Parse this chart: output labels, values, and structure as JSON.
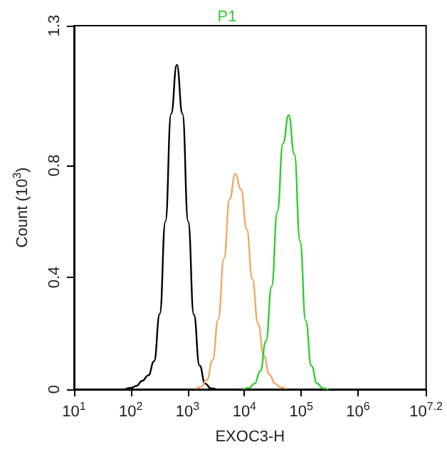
{
  "chart_data": {
    "type": "line",
    "xlabel": "EXOC3-H",
    "ylabel": "Count (10$^{3}$)",
    "log": "x",
    "xlim": [
      10,
      15848932
    ],
    "xticks": [
      {
        "value": 10,
        "label": "10$^{1}$"
      },
      {
        "value": 100,
        "label": "10$^{2}$"
      },
      {
        "value": 1000,
        "label": "10$^{3}$"
      },
      {
        "value": 10000,
        "label": "10$^{4}$"
      },
      {
        "value": 100000,
        "label": "10$^{5}$"
      },
      {
        "value": 1000000,
        "label": "10$^{6}$"
      },
      {
        "value": 15848932,
        "label": "10$^{7.2}$"
      }
    ],
    "ylim": [
      0,
      1.3
    ],
    "yticks": [
      0,
      0.4,
      0.8,
      1.3
    ],
    "grid": false,
    "marker": "none",
    "line_style": "solid",
    "legend": "top",
    "series": [
      {
        "color": "#000000",
        "x": [
          79,
          100,
          126,
          158,
          204,
          257,
          324,
          407,
          513,
          646,
          813,
          1023,
          1288,
          1622,
          2042,
          2570,
          3162
        ],
        "values": [
          0,
          0.005,
          0.012,
          0.03,
          0.05,
          0.1,
          0.27,
          0.6,
          0.985,
          1.16,
          0.985,
          0.6,
          0.267,
          0.085,
          0.02,
          0.003,
          0
        ]
      },
      {
        "color": "#f0a868",
        "x": [
          1380,
          1738,
          2188,
          2754,
          3467,
          4365,
          5495,
          6918,
          8710,
          10965,
          13804,
          17378,
          21878,
          27542,
          34674,
          43652,
          54954
        ],
        "values": [
          0.002,
          0.009,
          0.034,
          0.104,
          0.25,
          0.467,
          0.68,
          0.77,
          0.715,
          0.573,
          0.395,
          0.235,
          0.121,
          0.053,
          0.02,
          0.007,
          0.002
        ]
      },
      {
        "name": "P1",
        "color": "#33cc33",
        "x": [
          9550,
          12023,
          15136,
          19055,
          23988,
          30200,
          38019,
          47863,
          60256,
          75858,
          95499,
          120226,
          151356,
          190546,
          239883,
          301995
        ],
        "values": [
          0.001,
          0.005,
          0.02,
          0.065,
          0.172,
          0.368,
          0.634,
          0.879,
          0.98,
          0.84,
          0.53,
          0.245,
          0.084,
          0.021,
          0.004,
          0
        ]
      }
    ]
  }
}
